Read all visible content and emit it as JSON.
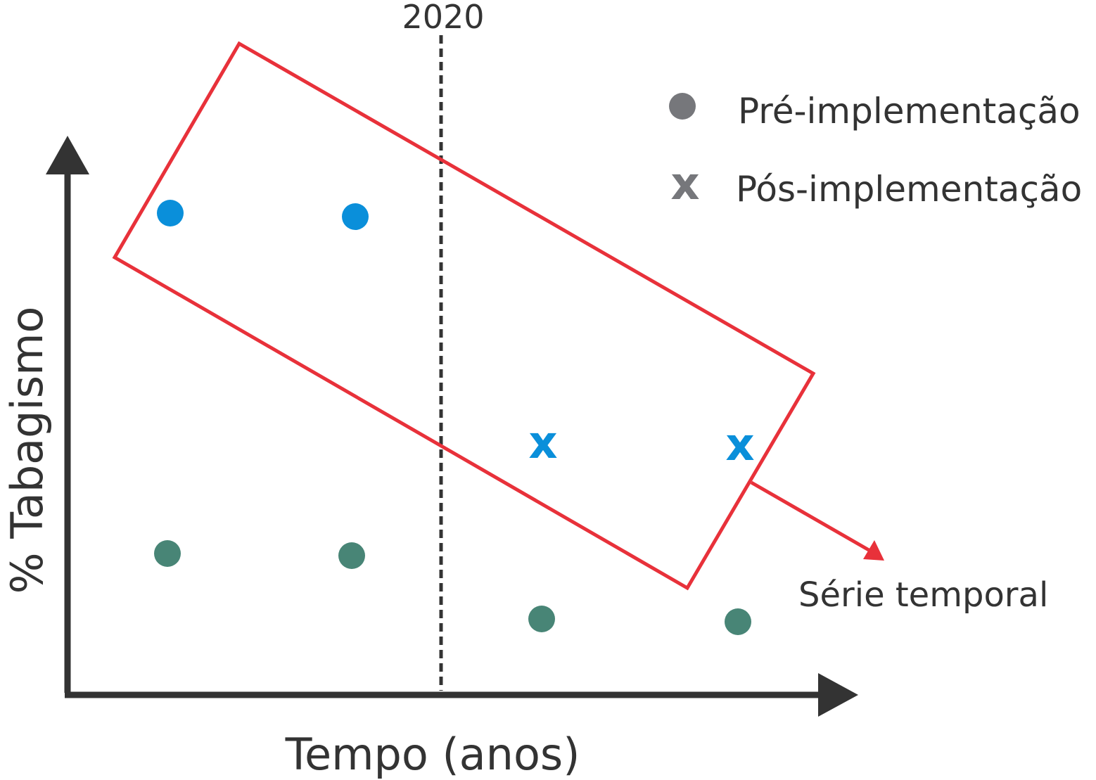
{
  "diagram": {
    "axes": {
      "x_label": "Tempo (anos)",
      "y_label": "% Tabagismo"
    },
    "divider_label": "2020",
    "legend": {
      "pre": {
        "label": "Pré-implementação",
        "marker": "circle"
      },
      "post": {
        "label": "Pós-implementação",
        "marker": "x"
      }
    },
    "annotation": {
      "label": "Série temporal"
    },
    "marker_glyph": "x",
    "colors": {
      "axis": "#333333",
      "divider": "#333333",
      "highlight_box": "#e8313a",
      "legend_marker": "#76777b",
      "group_blue": "#0a8fda",
      "group_green": "#488576"
    }
  }
}
